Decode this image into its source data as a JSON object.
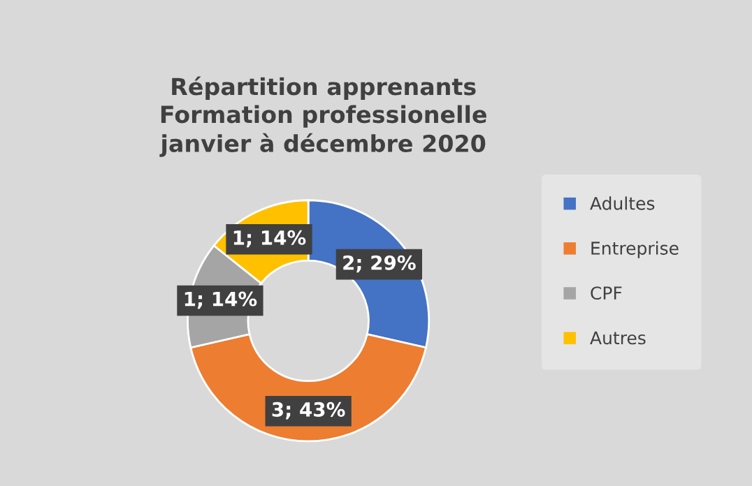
{
  "chart_data": {
    "type": "donut",
    "title": "Répartition apprenants\nFormation professionelle\njanvier à décembre 2020",
    "categories": [
      "Adultes",
      "Entreprise",
      "CPF",
      "Autres"
    ],
    "values": [
      2,
      3,
      1,
      1
    ],
    "colors": [
      "#4472c4",
      "#ed7d31",
      "#a5a5a5",
      "#ffc000"
    ],
    "value_labels": [
      "2; 29%",
      "3; 43%",
      "1; 14%",
      "1; 14%"
    ],
    "legend": "right"
  }
}
